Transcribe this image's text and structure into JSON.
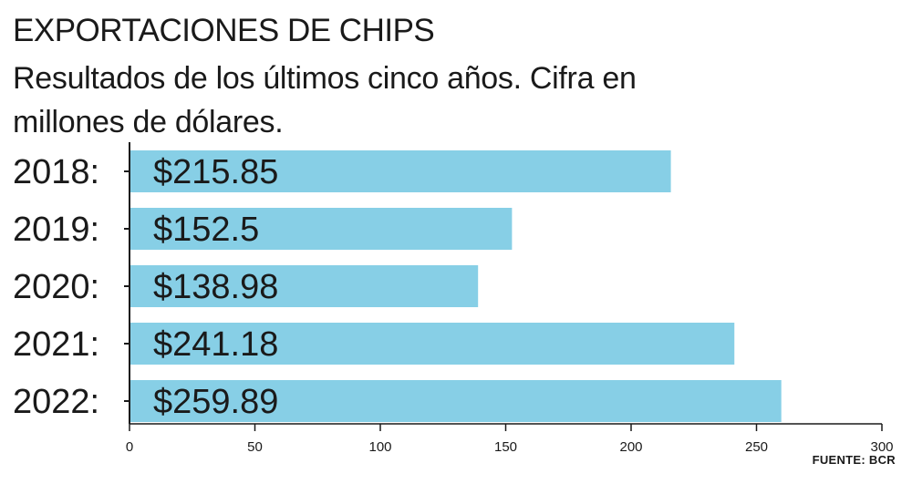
{
  "header": {
    "title": "EXPORTACIONES DE CHIPS",
    "subtitle": "Resultados de los últimos cinco años. Cifra en millones de dólares."
  },
  "source": "FUENTE: BCR",
  "colors": {
    "bar": "#87cfe6",
    "text": "#1a1a1a",
    "axis": "#1a1a1a"
  },
  "chart_data": {
    "type": "bar",
    "orientation": "horizontal",
    "title": "EXPORTACIONES DE CHIPS",
    "subtitle": "Resultados de los últimos cinco años. Cifra en millones de dólares.",
    "categories": [
      "2018:",
      "2019:",
      "2020:",
      "2021:",
      "2022:"
    ],
    "values": [
      215.85,
      152.5,
      138.98,
      241.18,
      259.89
    ],
    "value_labels": [
      "$215.85",
      "$152.5",
      "$138.98",
      "$241.18",
      "$259.89"
    ],
    "xlim": [
      0,
      300
    ],
    "xticks": [
      0,
      50,
      100,
      150,
      200,
      250,
      300
    ],
    "xlabel": "",
    "ylabel": "",
    "grid": false,
    "legend": "none"
  }
}
